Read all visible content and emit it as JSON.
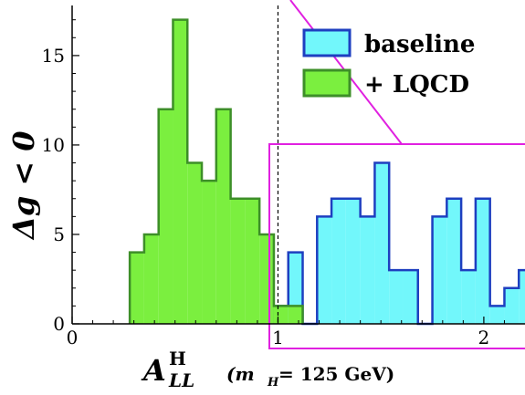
{
  "chart_data": {
    "type": "bar",
    "bin_width": 0.07,
    "xlim": [
      0,
      2.2
    ],
    "ylim": [
      0,
      17.8
    ],
    "x_ticks": [
      "0",
      "1",
      "2"
    ],
    "y_ticks": [
      "0",
      "5",
      "10",
      "15"
    ],
    "xlabel": {
      "main": "A",
      "superscript": "H",
      "subscript": "LL",
      "note": "(m",
      "note_sub": "H",
      "note_rest": " = 125 GeV)"
    },
    "ylabel": "Δg < 0",
    "legend_position": "top-right",
    "series": [
      {
        "name": "baseline",
        "color": "#72f7fb",
        "edge": "#1e3fc0",
        "bins": [
          {
            "x": 0.98,
            "y": 1
          },
          {
            "x": 1.05,
            "y": 4
          },
          {
            "x": 1.12,
            "y": 0
          },
          {
            "x": 1.19,
            "y": 6
          },
          {
            "x": 1.26,
            "y": 7
          },
          {
            "x": 1.33,
            "y": 7
          },
          {
            "x": 1.4,
            "y": 6
          },
          {
            "x": 1.47,
            "y": 9
          },
          {
            "x": 1.54,
            "y": 3
          },
          {
            "x": 1.61,
            "y": 3
          },
          {
            "x": 1.68,
            "y": 0
          },
          {
            "x": 1.75,
            "y": 6
          },
          {
            "x": 1.82,
            "y": 7
          },
          {
            "x": 1.89,
            "y": 3
          },
          {
            "x": 1.96,
            "y": 7
          },
          {
            "x": 2.03,
            "y": 1
          },
          {
            "x": 2.1,
            "y": 2
          },
          {
            "x": 2.17,
            "y": 3
          }
        ]
      },
      {
        "name": "+ LQCD",
        "color": "#7bef3f",
        "edge": "#3d8f28",
        "bins": [
          {
            "x": 0.28,
            "y": 4
          },
          {
            "x": 0.35,
            "y": 5
          },
          {
            "x": 0.42,
            "y": 12
          },
          {
            "x": 0.49,
            "y": 17
          },
          {
            "x": 0.56,
            "y": 9
          },
          {
            "x": 0.63,
            "y": 8
          },
          {
            "x": 0.7,
            "y": 12
          },
          {
            "x": 0.77,
            "y": 7
          },
          {
            "x": 0.84,
            "y": 7
          },
          {
            "x": 0.91,
            "y": 5
          },
          {
            "x": 0.98,
            "y": 1
          },
          {
            "x": 1.05,
            "y": 1
          }
        ]
      }
    ],
    "reference_line_x": 1.0,
    "zoom_line_color": "#e021e0"
  }
}
